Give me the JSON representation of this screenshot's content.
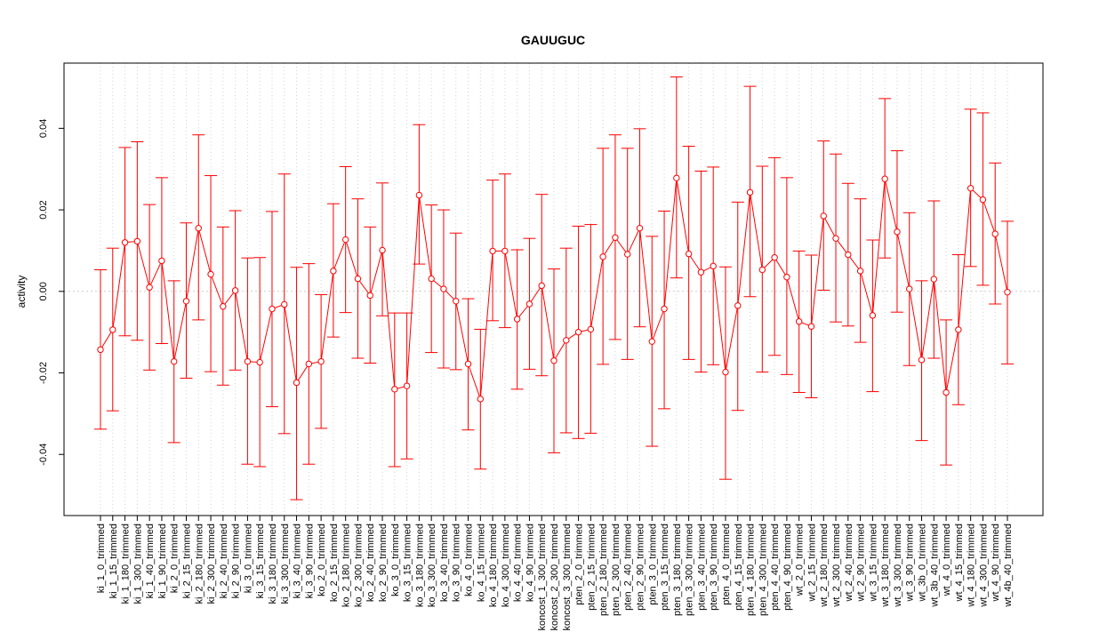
{
  "chart_data": {
    "type": "line",
    "title": "GAUUGUC",
    "xlabel": "",
    "ylabel": "activity",
    "ylim": [
      -0.055,
      0.056
    ],
    "y_ticks": [
      -0.04,
      -0.02,
      0.0,
      0.02,
      0.04
    ],
    "y_tick_labels": [
      "-0.04",
      "-0.02",
      "0.00",
      "0.02",
      "0.04"
    ],
    "grid": true,
    "reference_line": 0.0,
    "color": "#ff0000",
    "categories": [
      "ki_1_0_trimmed",
      "ki_1_15_trimmed",
      "ki_1_180_trimmed",
      "ki_1_300_trimmed",
      "ki_1_40_trimmed",
      "ki_1_90_trimmed",
      "ki_2_0_trimmed",
      "ki_2_15_trimmed",
      "ki_2_180_trimmed",
      "ki_2_300_trimmed",
      "ki_2_40_trimmed",
      "ki_2_90_trimmed",
      "ki_3_0_trimmed",
      "ki_3_15_trimmed",
      "ki_3_180_trimmed",
      "ki_3_300_trimmed",
      "ki_3_40_trimmed",
      "ki_3_90_trimmed",
      "ko_2_0_trimmed",
      "ko_2_15_trimmed",
      "ko_2_180_trimmed",
      "ko_2_300_trimmed",
      "ko_2_40_trimmed",
      "ko_2_90_trimmed",
      "ko_3_0_trimmed",
      "ko_3_15_trimmed",
      "ko_3_180_trimmed",
      "ko_3_300_trimmed",
      "ko_3_40_trimmed",
      "ko_3_90_trimmed",
      "ko_4_0_trimmed",
      "ko_4_15_trimmed",
      "ko_4_180_trimmed",
      "ko_4_300_trimmed",
      "ko_4_40_trimmed",
      "ko_4_90_trimmed",
      "koncost_1_300_trimmed",
      "koncost_2_300_trimmed",
      "koncost_3_300_trimmed",
      "pten_2_0_trimmed",
      "pten_2_15_trimmed",
      "pten_2_180_trimmed",
      "pten_2_300_trimmed",
      "pten_2_40_trimmed",
      "pten_2_90_trimmed",
      "pten_3_0_trimmed",
      "pten_3_15_trimmed",
      "pten_3_180_trimmed",
      "pten_3_300_trimmed",
      "pten_3_40_trimmed",
      "pten_3_90_trimmed",
      "pten_4_0_trimmed",
      "pten_4_15_trimmed",
      "pten_4_180_trimmed",
      "pten_4_300_trimmed",
      "pten_4_40_trimmed",
      "pten_4_90_trimmed",
      "wt_2_0_trimmed",
      "wt_2_15_trimmed",
      "wt_2_180_trimmed",
      "wt_2_300_trimmed",
      "wt_2_40_trimmed",
      "wt_2_90_trimmed",
      "wt_3_15_trimmed",
      "wt_3_180_trimmed",
      "wt_3_300_trimmed",
      "wt_3_90_trimmed",
      "wt_3b_0_trimmed",
      "wt_3b_40_trimmed",
      "wt_4_0_trimmed",
      "wt_4_15_trimmed",
      "wt_4_180_trimmed",
      "wt_4_300_trimmed",
      "wt_4_90_trimmed",
      "wt_4b_40_trimmed"
    ],
    "values": [
      -0.0143,
      -0.0094,
      0.012,
      0.0123,
      0.001,
      0.0075,
      -0.0172,
      -0.0024,
      0.0155,
      0.0042,
      -0.0037,
      0.0002,
      -0.0172,
      -0.0174,
      -0.0043,
      -0.0032,
      -0.0224,
      -0.0178,
      -0.0172,
      0.005,
      0.0127,
      0.0031,
      -0.001,
      0.0101,
      -0.024,
      -0.0232,
      0.0236,
      0.0031,
      0.0006,
      -0.0024,
      -0.0178,
      -0.0264,
      0.0099,
      0.0099,
      -0.0068,
      -0.0031,
      0.0014,
      -0.017,
      -0.012,
      -0.01,
      -0.0093,
      0.0085,
      0.0132,
      0.0091,
      0.0155,
      -0.0123,
      -0.0043,
      0.0278,
      0.0092,
      0.0047,
      0.0062,
      -0.0198,
      -0.0035,
      0.0243,
      0.0053,
      0.0083,
      0.0035,
      -0.0074,
      -0.0086,
      0.0185,
      0.013,
      0.009,
      0.005,
      -0.0059,
      0.0276,
      0.0146,
      0.0006,
      -0.0168,
      0.003,
      -0.0248,
      -0.0094,
      0.0253,
      0.0225,
      0.0141,
      -0.0002
    ],
    "upper": [
      0.0053,
      0.0106,
      0.0353,
      0.0367,
      0.0213,
      0.0279,
      0.0026,
      0.0168,
      0.0384,
      0.0284,
      0.0158,
      0.0198,
      0.0082,
      0.0083,
      0.0196,
      0.0288,
      0.0059,
      0.0068,
      -0.0008,
      0.0215,
      0.0306,
      0.0227,
      0.0158,
      0.0266,
      -0.0053,
      -0.0053,
      0.0409,
      0.0212,
      0.02,
      0.0143,
      -0.0018,
      -0.0093,
      0.0273,
      0.0288,
      0.0102,
      0.013,
      0.0238,
      0.0055,
      0.0106,
      0.016,
      0.0164,
      0.0351,
      0.0384,
      0.0351,
      0.0399,
      0.0135,
      0.0197,
      0.0526,
      0.0356,
      0.0295,
      0.0305,
      0.006,
      0.0219,
      0.0503,
      0.0307,
      0.0328,
      0.0279,
      0.0099,
      0.0089,
      0.0369,
      0.0337,
      0.0265,
      0.0227,
      0.0126,
      0.0473,
      0.0345,
      0.0193,
      0.0026,
      0.0222,
      -0.007,
      0.009,
      0.0447,
      0.0438,
      0.0315,
      0.0172
    ],
    "lower": [
      -0.0338,
      -0.0293,
      -0.0109,
      -0.012,
      -0.0193,
      -0.0128,
      -0.0371,
      -0.0213,
      -0.007,
      -0.0197,
      -0.023,
      -0.0193,
      -0.0424,
      -0.043,
      -0.0283,
      -0.0349,
      -0.0511,
      -0.0424,
      -0.0336,
      -0.0112,
      -0.0052,
      -0.0164,
      -0.0176,
      -0.006,
      -0.043,
      -0.0411,
      0.0067,
      -0.015,
      -0.0188,
      -0.0192,
      -0.034,
      -0.0436,
      -0.0072,
      -0.0089,
      -0.024,
      -0.0191,
      -0.0207,
      -0.0396,
      -0.0347,
      -0.0361,
      -0.0348,
      -0.0179,
      -0.0118,
      -0.0167,
      -0.0087,
      -0.038,
      -0.0288,
      0.0033,
      -0.0167,
      -0.0198,
      -0.018,
      -0.0461,
      -0.0292,
      -0.0013,
      -0.0198,
      -0.0157,
      -0.0204,
      -0.0248,
      -0.0261,
      0.0003,
      -0.0075,
      -0.0085,
      -0.0125,
      -0.0246,
      0.0082,
      -0.0051,
      -0.0182,
      -0.0366,
      -0.0164,
      -0.0426,
      -0.0278,
      0.0061,
      0.0015,
      -0.0031,
      -0.0178
    ]
  }
}
